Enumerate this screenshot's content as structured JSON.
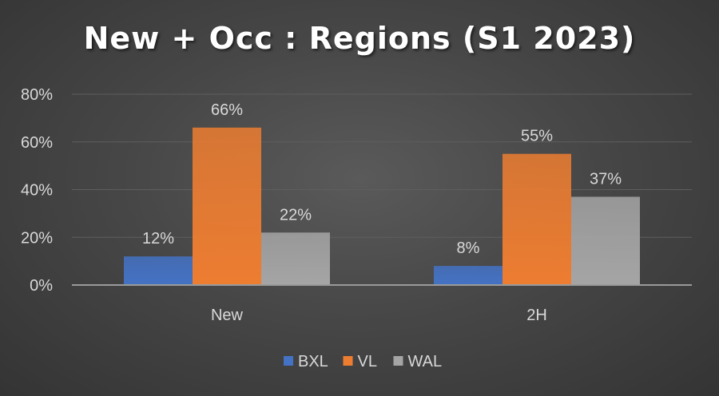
{
  "chart_data": {
    "type": "bar",
    "title": "New + Occ : Regions (S1 2023)",
    "categories": [
      "New",
      "2H"
    ],
    "series": [
      {
        "name": "BXL",
        "values": [
          12,
          8
        ],
        "labels": [
          "12%",
          "8%"
        ],
        "color": "#4472c4"
      },
      {
        "name": "VL",
        "values": [
          66,
          55
        ],
        "labels": [
          "66%",
          "55%"
        ],
        "color": "#ed7d31"
      },
      {
        "name": "WAL",
        "values": [
          22,
          37
        ],
        "labels": [
          "22%",
          "37%"
        ],
        "color": "#a5a5a5"
      }
    ],
    "ylim": [
      0,
      80
    ],
    "yticks": [
      0,
      20,
      40,
      60,
      80
    ],
    "ytick_labels": [
      "0%",
      "20%",
      "40%",
      "60%",
      "80%"
    ],
    "xlabel": "",
    "ylabel": "",
    "grid": true,
    "legend": "bottom"
  }
}
